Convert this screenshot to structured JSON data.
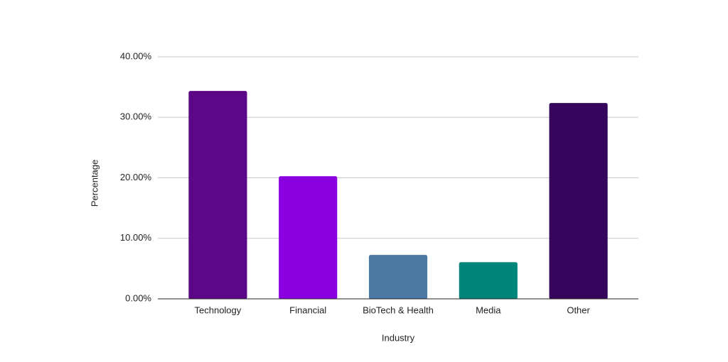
{
  "chart_data": {
    "type": "bar",
    "x_label": "Industry",
    "y_label": "Percentage",
    "categories": [
      "Technology",
      "Financial",
      "BioTech & Health",
      "Media",
      "Other"
    ],
    "values": [
      34.3,
      20.2,
      7.2,
      6.0,
      32.3
    ],
    "colors": [
      "#5b0787",
      "#8a00e0",
      "#4c79a4",
      "#00857a",
      "#35065c"
    ],
    "ylim": [
      0,
      40
    ],
    "yticks": [
      {
        "value": 0,
        "label": "0.00%"
      },
      {
        "value": 10,
        "label": "10.00%"
      },
      {
        "value": 20,
        "label": "20.00%"
      },
      {
        "value": 30,
        "label": "30.00%"
      },
      {
        "value": 40,
        "label": "40.00%"
      }
    ],
    "grid": true
  }
}
